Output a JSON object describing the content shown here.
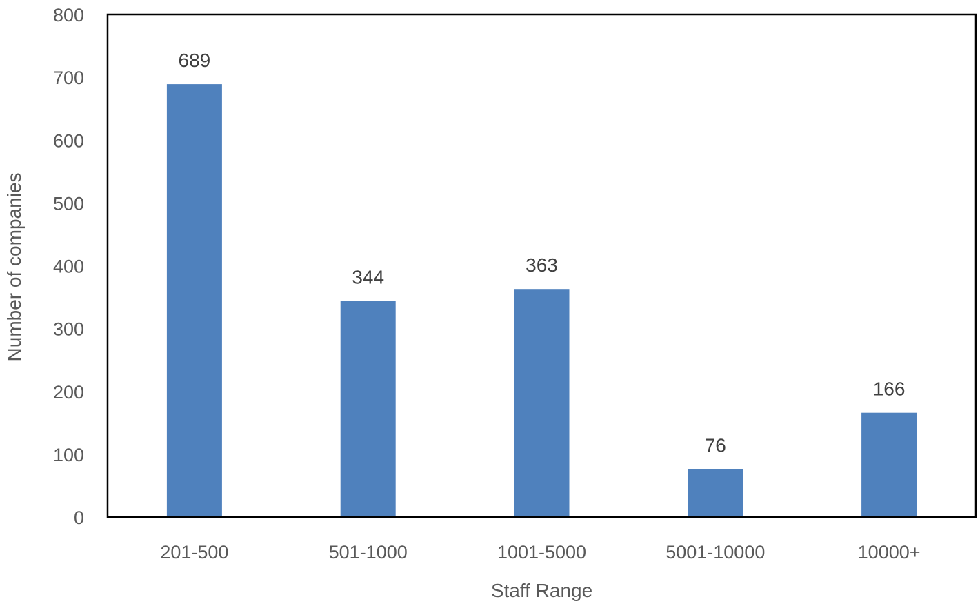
{
  "chart_data": {
    "type": "bar",
    "title": "",
    "xlabel": "Staff Range",
    "ylabel": "Number of companies",
    "categories": [
      "201-500",
      "501-1000",
      "1001-5000",
      "5001-10000",
      "10000+"
    ],
    "values": [
      689,
      344,
      363,
      76,
      166
    ],
    "data_labels": [
      "689",
      "344",
      "363",
      "76",
      "166"
    ],
    "ylim": [
      0,
      800
    ],
    "yticks": [
      0,
      100,
      200,
      300,
      400,
      500,
      600,
      700,
      800
    ],
    "ytick_labels": [
      "0",
      "100",
      "200",
      "300",
      "400",
      "500",
      "600",
      "700",
      "800"
    ],
    "grid": false,
    "legend": "none",
    "bar_color": "#4F81BD",
    "frame_color": "#000000",
    "baseline_color": "#BFBFBF"
  }
}
